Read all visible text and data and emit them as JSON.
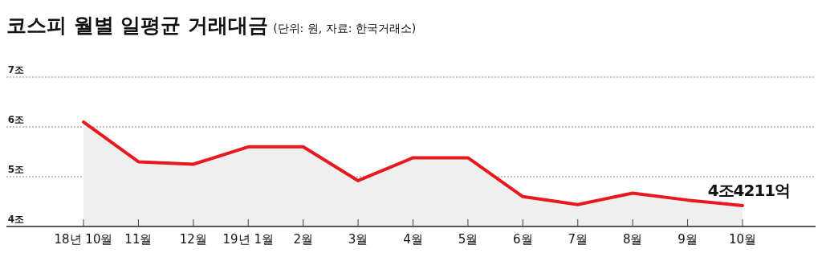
{
  "chart_data": {
    "type": "area",
    "title": "코스피 월별 일평균 거래대금",
    "subtitle": "(단위: 원, 자료: 한국거래소)",
    "categories": [
      "18년 10월",
      "11월",
      "12월",
      "19년 1월",
      "2월",
      "3월",
      "4월",
      "5월",
      "6월",
      "7월",
      "8월",
      "9월",
      "10월"
    ],
    "series": [
      {
        "color": "#e8181e",
        "values": [
          6.1,
          5.3,
          5.25,
          5.6,
          5.6,
          4.92,
          5.38,
          5.38,
          4.6,
          4.44,
          4.67,
          4.53,
          4.4211
        ]
      }
    ],
    "ylim": [
      4,
      7
    ],
    "yticks": [
      {
        "value": 4,
        "label": "4조"
      },
      {
        "value": 5,
        "label": "5조"
      },
      {
        "value": 6,
        "label": "6조"
      },
      {
        "value": 7,
        "label": "7조"
      }
    ],
    "grid": "y",
    "annotations": [
      {
        "text": "4조4211억",
        "x": "10월",
        "y": 4.4211
      }
    ]
  }
}
